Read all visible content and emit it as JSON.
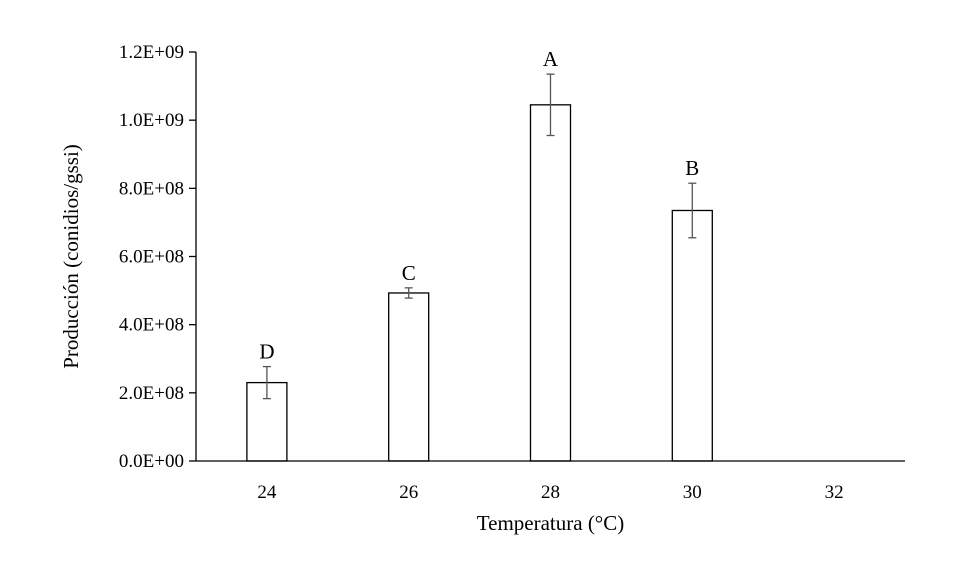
{
  "chart_data": {
    "type": "bar",
    "xlabel": "Temperatura (°C)",
    "ylabel": "Producción (conidios/gssi)",
    "ylim": [
      0,
      1200000000
    ],
    "yticks": [
      0,
      200000000,
      400000000,
      600000000,
      800000000,
      1000000000,
      1200000000
    ],
    "ytick_labels": [
      "0.0E+00",
      "2.0E+08",
      "4.0E+08",
      "6.0E+08",
      "8.0E+08",
      "1.0E+09",
      "1.2E+09"
    ],
    "categories": [
      "24",
      "26",
      "28",
      "30",
      "32"
    ],
    "values": [
      230000000,
      493000000,
      1045000000,
      735000000,
      null
    ],
    "errors": [
      47000000,
      15000000,
      90000000,
      80000000,
      null
    ],
    "significance_letters": [
      "D",
      "C",
      "A",
      "B",
      ""
    ],
    "bar_fill": "#ffffff",
    "bar_stroke": "#000000",
    "error_bar_color": "#555555",
    "grid": false,
    "legend": "none"
  }
}
